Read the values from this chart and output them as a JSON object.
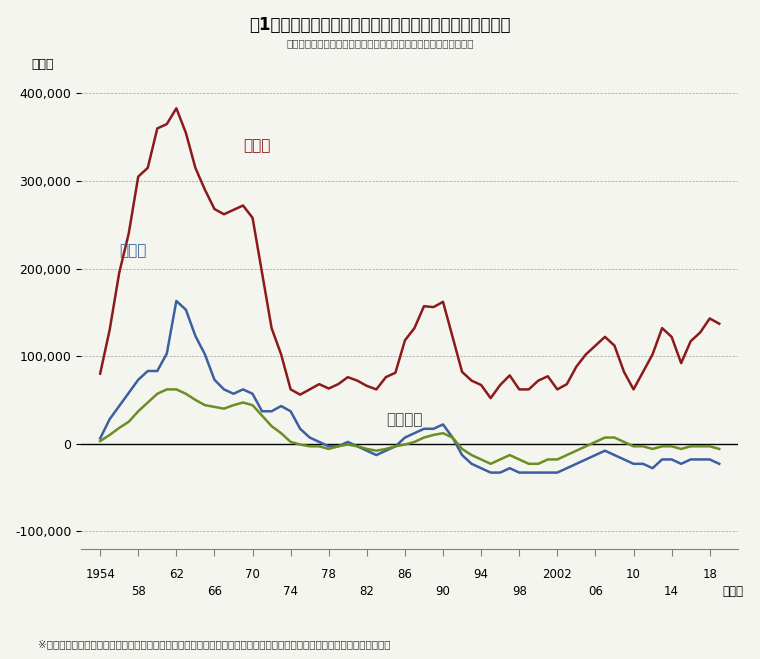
{
  "title": "図1　産業構造の変化とともに続いてきた東京圏一極集中",
  "subtitle": "（出所）総務省統計局「住民基本台帳人口移動報告」より筆者作成",
  "ylabel": "（人）",
  "xlabel_unit": "（年）",
  "footnote": "※　東京都、神奈川県、埼玉県、千葉県の東京圏、愛知県、岐阜県、三重県の名古屋圏、大阪府、兵庫県、奈良県の大阪圏。",
  "ylim": [
    -120000,
    420000
  ],
  "yticks": [
    -100000,
    0,
    100000,
    200000,
    300000,
    400000
  ],
  "years": [
    1954,
    1955,
    1956,
    1957,
    1958,
    1959,
    1960,
    1961,
    1962,
    1963,
    1964,
    1965,
    1966,
    1967,
    1968,
    1969,
    1970,
    1971,
    1972,
    1973,
    1974,
    1975,
    1976,
    1977,
    1978,
    1979,
    1980,
    1981,
    1982,
    1983,
    1984,
    1985,
    1986,
    1987,
    1988,
    1989,
    1990,
    1991,
    1992,
    1993,
    1994,
    1995,
    1996,
    1997,
    1998,
    1999,
    2000,
    2001,
    2002,
    2003,
    2004,
    2005,
    2006,
    2007,
    2008,
    2009,
    2010,
    2011,
    2012,
    2013,
    2014,
    2015,
    2016,
    2017,
    2018,
    2019
  ],
  "tokyo": [
    80000,
    130000,
    195000,
    240000,
    305000,
    315000,
    360000,
    365000,
    383000,
    355000,
    315000,
    290000,
    268000,
    262000,
    267000,
    272000,
    258000,
    195000,
    132000,
    102000,
    62000,
    56000,
    62000,
    68000,
    63000,
    68000,
    76000,
    72000,
    66000,
    62000,
    76000,
    81000,
    118000,
    132000,
    157000,
    156000,
    162000,
    122000,
    82000,
    72000,
    67000,
    52000,
    67000,
    78000,
    62000,
    62000,
    72000,
    77000,
    62000,
    68000,
    88000,
    102000,
    112000,
    122000,
    112000,
    82000,
    62000,
    82000,
    102000,
    132000,
    122000,
    92000,
    117000,
    127000,
    143000,
    137000
  ],
  "osaka": [
    6000,
    28000,
    43000,
    58000,
    73000,
    83000,
    83000,
    103000,
    163000,
    153000,
    123000,
    102000,
    73000,
    62000,
    57000,
    62000,
    57000,
    37000,
    37000,
    43000,
    37000,
    17000,
    7000,
    2000,
    -3000,
    -3000,
    2000,
    -3000,
    -8000,
    -13000,
    -8000,
    -3000,
    7000,
    12000,
    17000,
    17000,
    22000,
    7000,
    -13000,
    -23000,
    -28000,
    -33000,
    -33000,
    -28000,
    -33000,
    -33000,
    -33000,
    -33000,
    -33000,
    -28000,
    -23000,
    -18000,
    -13000,
    -8000,
    -13000,
    -18000,
    -23000,
    -23000,
    -28000,
    -18000,
    -18000,
    -23000,
    -18000,
    -18000,
    -18000,
    -23000
  ],
  "nagoya": [
    3000,
    10000,
    18000,
    25000,
    37000,
    47000,
    57000,
    62000,
    62000,
    57000,
    50000,
    44000,
    42000,
    40000,
    44000,
    47000,
    44000,
    32000,
    20000,
    12000,
    2000,
    -1000,
    -3000,
    -3000,
    -6000,
    -3000,
    -1000,
    -3000,
    -6000,
    -8000,
    -6000,
    -3000,
    -1000,
    2000,
    7000,
    10000,
    12000,
    7000,
    -6000,
    -13000,
    -18000,
    -23000,
    -18000,
    -13000,
    -18000,
    -23000,
    -23000,
    -18000,
    -18000,
    -13000,
    -8000,
    -3000,
    2000,
    7000,
    7000,
    2000,
    -3000,
    -3000,
    -6000,
    -3000,
    -3000,
    -6000,
    -3000,
    -3000,
    -3000,
    -6000
  ],
  "tokyo_color": "#8B1A1A",
  "osaka_color": "#3B5FA0",
  "nagoya_color": "#6B8E23",
  "background_color": "#F5F5F0",
  "line_width": 1.8,
  "label_tokyo": "東京圏",
  "label_osaka": "大阪圏",
  "label_nagoya": "名古屋圏",
  "upper_xticks": [
    1954,
    1962,
    1970,
    1978,
    1986,
    1994,
    2002,
    2010,
    2018
  ],
  "upper_labels": [
    "1954",
    "62",
    "70",
    "78",
    "86",
    "94",
    "2002",
    "10",
    "18"
  ],
  "lower_xticks": [
    1958,
    1966,
    1974,
    1982,
    1990,
    1998,
    2006,
    2014
  ],
  "lower_labels": [
    "58",
    "66",
    "74",
    "82",
    "90",
    "98",
    "06",
    "14"
  ]
}
